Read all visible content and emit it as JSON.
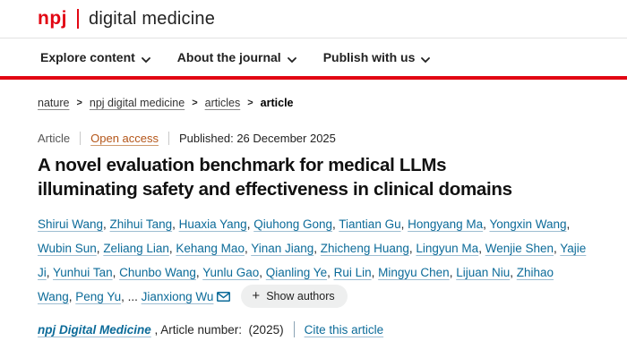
{
  "colors": {
    "brand_red": "#e20613",
    "link_blue": "#0c6b99",
    "open_access_orange": "#b45518"
  },
  "header": {
    "logo_npj": "npj",
    "logo_journal": "digital medicine"
  },
  "nav": {
    "items": [
      {
        "label": "Explore content"
      },
      {
        "label": "About the journal"
      },
      {
        "label": "Publish with us"
      }
    ]
  },
  "breadcrumb": {
    "separator": ">",
    "items": [
      {
        "label": "nature"
      },
      {
        "label": "npj digital medicine"
      },
      {
        "label": "articles"
      },
      {
        "label": "article"
      }
    ]
  },
  "article_meta": {
    "type": "Article",
    "access": "Open access",
    "published": "Published: 26 December 2025"
  },
  "title_lines": [
    "A novel evaluation benchmark for medical LLMs",
    "illuminating safety and effectiveness in clinical domains"
  ],
  "authors": {
    "names": [
      "Shirui Wang",
      "Zhihui Tang",
      "Huaxia Yang",
      "Qiuhong Gong",
      "Tiantian Gu",
      "Hongyang Ma",
      "Yongxin Wang",
      "Wubin Sun",
      "Zeliang Lian",
      "Kehang Mao",
      "Yinan Jiang",
      "Zhicheng Huang",
      "Lingyun Ma",
      "Wenjie Shen",
      "Yajie Ji",
      "Yunhui Tan",
      "Chunbo Wang",
      "Yunlu Gao",
      "Qianling Ye",
      "Rui Lin",
      "Mingyu Chen",
      "Lijuan Niu",
      "Zhihao Wang",
      "Peng Yu"
    ],
    "separator": ", ",
    "ellipsis": "... ",
    "corresponding": "Jianxiong Wu",
    "show_more_plus": "+",
    "show_more_label": "Show authors"
  },
  "citation": {
    "journal": "npj Digital Medicine",
    "text": " , Article number:  (2025)",
    "cite_label": "Cite this article"
  }
}
